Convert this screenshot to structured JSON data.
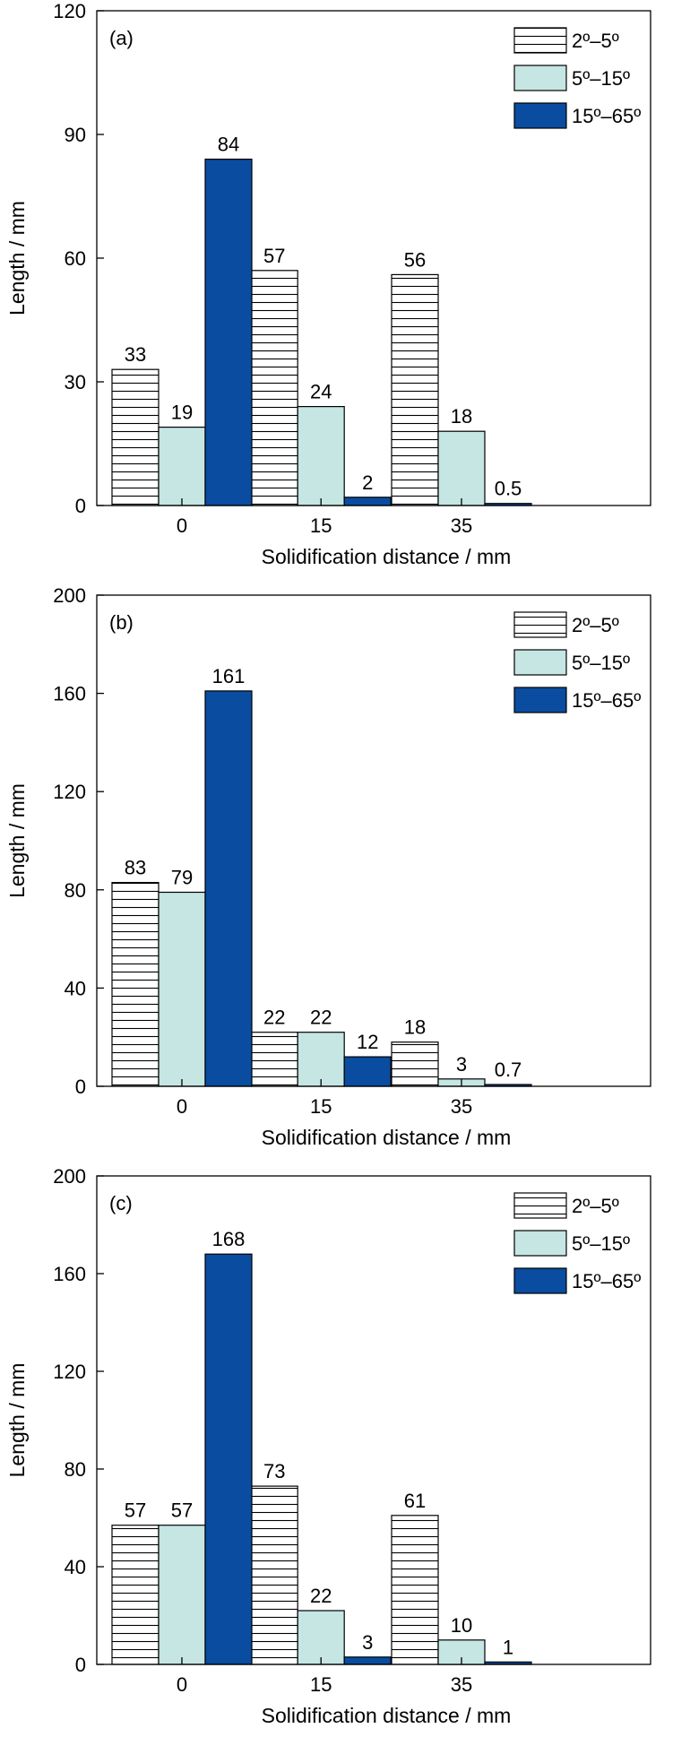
{
  "colors": {
    "series_2_5": "#ffffff",
    "series_2_5_hatch": "#000000",
    "series_5_15": "#c5e6e3",
    "series_15_65": "#0a4c9f"
  },
  "chart_data": [
    {
      "type": "bar",
      "panel_label": "(a)",
      "categories": [
        "0",
        "15",
        "35"
      ],
      "xlabel": "Solidification distance / mm",
      "ylabel": "Length / mm",
      "ylim": [
        0,
        120
      ],
      "yticks": [
        "0",
        "30",
        "60",
        "90",
        "120"
      ],
      "legend_position": "top-right",
      "series": [
        {
          "name": "2º–5º",
          "values": [
            33,
            57,
            56
          ],
          "labels": [
            "33",
            "57",
            "56"
          ],
          "style": "hatch"
        },
        {
          "name": "5º–15º",
          "values": [
            19,
            24,
            18
          ],
          "labels": [
            "19",
            "24",
            "18"
          ],
          "style": "light"
        },
        {
          "name": "15º–65º",
          "values": [
            84,
            2,
            0.5
          ],
          "labels": [
            "84",
            "2",
            "0.5"
          ],
          "style": "dark"
        }
      ]
    },
    {
      "type": "bar",
      "panel_label": "(b)",
      "categories": [
        "0",
        "15",
        "35"
      ],
      "xlabel": "Solidification distance / mm",
      "ylabel": "Length / mm",
      "ylim": [
        0,
        200
      ],
      "yticks": [
        "0",
        "40",
        "80",
        "120",
        "160",
        "200"
      ],
      "legend_position": "top-right",
      "series": [
        {
          "name": "2º–5º",
          "values": [
            83,
            22,
            18
          ],
          "labels": [
            "83",
            "22",
            "18"
          ],
          "style": "hatch"
        },
        {
          "name": "5º–15º",
          "values": [
            79,
            22,
            3
          ],
          "labels": [
            "79",
            "22",
            "3"
          ],
          "style": "light"
        },
        {
          "name": "15º–65º",
          "values": [
            161,
            12,
            0.7
          ],
          "labels": [
            "161",
            "12",
            "0.7"
          ],
          "style": "dark"
        }
      ]
    },
    {
      "type": "bar",
      "panel_label": "(c)",
      "categories": [
        "0",
        "15",
        "35"
      ],
      "xlabel": "Solidification distance / mm",
      "ylabel": "Length / mm",
      "ylim": [
        0,
        200
      ],
      "yticks": [
        "0",
        "40",
        "80",
        "120",
        "160",
        "200"
      ],
      "legend_position": "top-right",
      "series": [
        {
          "name": "2º–5º",
          "values": [
            57,
            73,
            61
          ],
          "labels": [
            "57",
            "73",
            "61"
          ],
          "style": "hatch"
        },
        {
          "name": "5º–15º",
          "values": [
            57,
            22,
            10
          ],
          "labels": [
            "57",
            "22",
            "10"
          ],
          "style": "light"
        },
        {
          "name": "15º–65º",
          "values": [
            168,
            3,
            1
          ],
          "labels": [
            "168",
            "3",
            "1"
          ],
          "style": "dark"
        }
      ]
    }
  ]
}
